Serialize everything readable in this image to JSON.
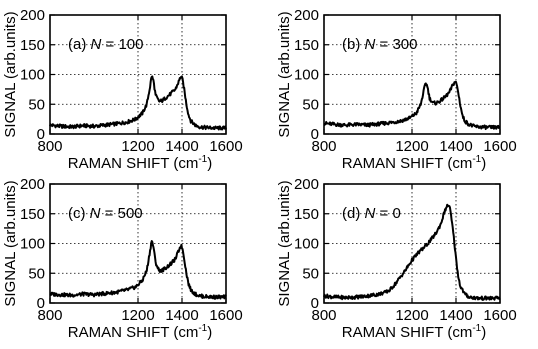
{
  "chart_data": [
    {
      "type": "line",
      "panel_label": "(a) N = 100",
      "panel_label_parts": {
        "prefix": "(a) ",
        "variable": "N",
        "suffix": " = 100"
      },
      "xlabel": "RAMAN SHIFT (cm-1)",
      "xlabel_parts": {
        "main": "RAMAN SHIFT (cm",
        "sup": "-1",
        "end": ")"
      },
      "ylabel": "SIGNAL (arb.units)",
      "xlim": [
        800,
        1600
      ],
      "ylim": [
        0,
        200
      ],
      "x_ticks": [
        "800",
        "1200",
        "1400",
        "1600"
      ],
      "y_ticks": [
        "0",
        "50",
        "100",
        "150",
        "200"
      ],
      "grid": true,
      "series": [
        {
          "x": [
            800,
            850,
            900,
            950,
            1000,
            1050,
            1100,
            1150,
            1190,
            1220,
            1240,
            1255,
            1262,
            1270,
            1280,
            1295,
            1310,
            1330,
            1350,
            1370,
            1385,
            1395,
            1402,
            1410,
            1420,
            1430,
            1440,
            1460,
            1480,
            1500,
            1550,
            1600
          ],
          "y": [
            15,
            13,
            12,
            14,
            13,
            15,
            17,
            20,
            25,
            35,
            50,
            80,
            98,
            90,
            65,
            55,
            56,
            62,
            68,
            75,
            88,
            97,
            92,
            75,
            50,
            32,
            22,
            15,
            12,
            11,
            10,
            10
          ]
        }
      ]
    },
    {
      "type": "line",
      "panel_label": "(b) N = 300",
      "panel_label_parts": {
        "prefix": "(b) ",
        "variable": "N",
        "suffix": " = 300"
      },
      "xlabel": "RAMAN SHIFT (cm-1)",
      "xlabel_parts": {
        "main": "RAMAN SHIFT (cm",
        "sup": "-1",
        "end": ")"
      },
      "ylabel": "SIGNAL (arb.units)",
      "xlim": [
        800,
        1600
      ],
      "ylim": [
        0,
        200
      ],
      "x_ticks": [
        "800",
        "1200",
        "1400",
        "1600"
      ],
      "y_ticks": [
        "0",
        "50",
        "100",
        "150",
        "200"
      ],
      "grid": true,
      "series": [
        {
          "x": [
            800,
            850,
            900,
            950,
            1000,
            1050,
            1100,
            1150,
            1190,
            1220,
            1240,
            1255,
            1262,
            1270,
            1280,
            1295,
            1310,
            1330,
            1350,
            1370,
            1385,
            1395,
            1402,
            1410,
            1420,
            1430,
            1440,
            1460,
            1480,
            1500,
            1550,
            1600
          ],
          "y": [
            18,
            16,
            15,
            16,
            15,
            17,
            19,
            22,
            27,
            35,
            50,
            75,
            86,
            80,
            60,
            52,
            52,
            56,
            62,
            70,
            82,
            88,
            85,
            70,
            48,
            30,
            22,
            16,
            13,
            12,
            11,
            11
          ]
        }
      ]
    },
    {
      "type": "line",
      "panel_label": "(c) N = 500",
      "panel_label_parts": {
        "prefix": "(c) ",
        "variable": "N",
        "suffix": " = 500"
      },
      "xlabel": "RAMAN SHIFT (cm-1)",
      "xlabel_parts": {
        "main": "RAMAN SHIFT (cm",
        "sup": "-1",
        "end": ")"
      },
      "ylabel": "SIGNAL (arb.units)",
      "xlim": [
        800,
        1600
      ],
      "ylim": [
        0,
        200
      ],
      "x_ticks": [
        "800",
        "1200",
        "1400",
        "1600"
      ],
      "y_ticks": [
        "0",
        "50",
        "100",
        "150",
        "200"
      ],
      "grid": true,
      "series": [
        {
          "x": [
            800,
            850,
            900,
            950,
            1000,
            1050,
            1100,
            1150,
            1190,
            1220,
            1240,
            1255,
            1262,
            1270,
            1280,
            1295,
            1310,
            1330,
            1350,
            1370,
            1385,
            1395,
            1402,
            1410,
            1420,
            1430,
            1440,
            1460,
            1480,
            1500,
            1550,
            1600
          ],
          "y": [
            15,
            14,
            13,
            15,
            14,
            16,
            18,
            22,
            27,
            38,
            55,
            88,
            105,
            95,
            68,
            55,
            55,
            60,
            66,
            74,
            88,
            97,
            92,
            75,
            50,
            32,
            22,
            15,
            12,
            11,
            10,
            10
          ]
        }
      ]
    },
    {
      "type": "line",
      "panel_label": "(d) N = 0",
      "panel_label_parts": {
        "prefix": "(d) ",
        "variable": "N",
        "suffix": " = 0"
      },
      "xlabel": "RAMAN SHIFT (cm-1)",
      "xlabel_parts": {
        "main": "RAMAN SHIFT (cm",
        "sup": "-1",
        "end": ")"
      },
      "ylabel": "SIGNAL (arb.units)",
      "xlim": [
        800,
        1600
      ],
      "ylim": [
        0,
        200
      ],
      "x_ticks": [
        "800",
        "1200",
        "1400",
        "1600"
      ],
      "y_ticks": [
        "0",
        "50",
        "100",
        "150",
        "200"
      ],
      "grid": true,
      "series": [
        {
          "x": [
            800,
            850,
            900,
            950,
            1000,
            1050,
            1080,
            1100,
            1130,
            1150,
            1170,
            1200,
            1230,
            1260,
            1290,
            1310,
            1330,
            1345,
            1355,
            1365,
            1372,
            1380,
            1390,
            1400,
            1410,
            1420,
            1440,
            1460,
            1500,
            1550,
            1600
          ],
          "y": [
            12,
            10,
            9,
            10,
            12,
            15,
            18,
            22,
            35,
            45,
            55,
            72,
            85,
            95,
            108,
            118,
            132,
            150,
            160,
            165,
            160,
            140,
            110,
            75,
            45,
            28,
            15,
            10,
            8,
            8,
            8
          ]
        }
      ]
    }
  ]
}
